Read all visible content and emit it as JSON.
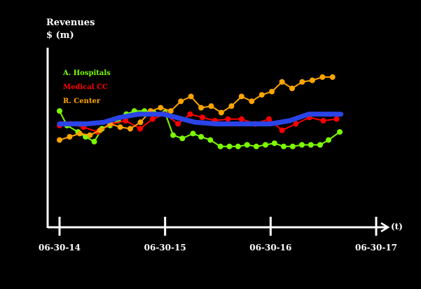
{
  "chart_data": {
    "type": "line",
    "ylabel_line1": "Revenues",
    "ylabel_line2": "$ (m)",
    "xlabel": "(t)",
    "x_ticks": [
      "06-30-14",
      "06-30-15",
      "06-30-16",
      "06-30-17"
    ],
    "legend_position": "top-left",
    "grid": false,
    "ylim": [
      0,
      10
    ],
    "series": [
      {
        "name": "A. Hospitals",
        "color": "#7CFC00",
        "markers": true,
        "x": [
          "2014-06-30",
          "2014-07-26",
          "2014-09-02",
          "2014-09-28",
          "2014-10-28",
          "2014-11-24",
          "2014-12-22",
          "2015-01-19",
          "2015-02-16",
          "2015-03-16",
          "2015-04-20",
          "2015-05-22",
          "2015-06-30",
          "2015-07-28",
          "2015-08-29",
          "2015-10-05",
          "2015-11-02",
          "2015-12-04",
          "2016-01-08",
          "2016-02-08",
          "2016-03-09",
          "2016-04-09",
          "2016-05-11",
          "2016-06-12",
          "2016-07-13",
          "2016-08-14",
          "2016-09-14",
          "2016-10-16",
          "2016-11-16",
          "2016-12-18",
          "2017-01-16",
          "2017-02-24"
        ],
        "values": [
          6.6,
          5.7,
          5.3,
          5.0,
          4.7,
          5.5,
          5.7,
          6.0,
          6.4,
          6.6,
          6.6,
          6.5,
          6.5,
          5.1,
          4.9,
          5.2,
          5.0,
          4.8,
          4.4,
          4.4,
          4.4,
          4.5,
          4.4,
          4.5,
          4.6,
          4.4,
          4.4,
          4.5,
          4.5,
          4.5,
          4.8,
          5.3
        ]
      },
      {
        "name": "Medical CC",
        "color": "#FF0000",
        "markers": true,
        "x": [
          "2014-06-30",
          "2014-08-07",
          "2014-09-21",
          "2014-11-09",
          "2014-12-26",
          "2015-02-14",
          "2015-04-05",
          "2015-05-18",
          "2015-06-30",
          "2015-08-14",
          "2015-09-25",
          "2015-11-07",
          "2015-12-20",
          "2016-02-03",
          "2016-03-21",
          "2016-05-07",
          "2016-06-24",
          "2016-08-08",
          "2016-09-25",
          "2016-11-11",
          "2016-12-29",
          "2017-02-13"
        ],
        "values": [
          5.7,
          5.8,
          5.6,
          5.3,
          5.8,
          6.0,
          5.5,
          6.1,
          6.4,
          5.8,
          6.4,
          6.2,
          6.0,
          6.1,
          6.1,
          5.8,
          6.1,
          5.4,
          5.8,
          6.2,
          6.0,
          6.1
        ]
      },
      {
        "name": "R. Center",
        "color": "#FFA500",
        "markers": true,
        "x": [
          "2014-06-30",
          "2014-08-04",
          "2014-09-08",
          "2014-10-13",
          "2014-11-17",
          "2014-12-22",
          "2015-01-26",
          "2015-03-02",
          "2015-04-06",
          "2015-05-11",
          "2015-06-15",
          "2015-07-20",
          "2015-08-24",
          "2015-09-28",
          "2015-11-02",
          "2015-12-07",
          "2016-01-11",
          "2016-02-15",
          "2016-03-21",
          "2016-04-25",
          "2016-05-30",
          "2016-07-04",
          "2016-08-08",
          "2016-09-12",
          "2016-10-17",
          "2016-11-21",
          "2016-12-26",
          "2017-01-30"
        ],
        "values": [
          4.8,
          5.0,
          5.2,
          5.1,
          5.4,
          5.8,
          5.6,
          5.5,
          5.9,
          6.6,
          6.8,
          6.6,
          7.2,
          7.5,
          6.8,
          6.9,
          6.5,
          6.9,
          7.5,
          7.2,
          7.6,
          7.8,
          8.4,
          8.0,
          8.4,
          8.5,
          8.7,
          8.7
        ]
      },
      {
        "name": "",
        "color": "#2B44E8",
        "markers": false,
        "x": [
          "2014-06-30",
          "2014-09-30",
          "2014-12-01",
          "2015-01-25",
          "2015-03-28",
          "2015-06-25",
          "2015-08-08",
          "2015-10-13",
          "2015-12-25",
          "2016-02-28",
          "2016-06-30",
          "2016-09-04",
          "2016-11-08",
          "2017-02-28"
        ],
        "values": [
          5.8,
          5.8,
          5.9,
          6.2,
          6.4,
          6.4,
          6.2,
          5.9,
          5.8,
          5.8,
          5.8,
          6.0,
          6.4,
          6.4
        ]
      }
    ]
  }
}
